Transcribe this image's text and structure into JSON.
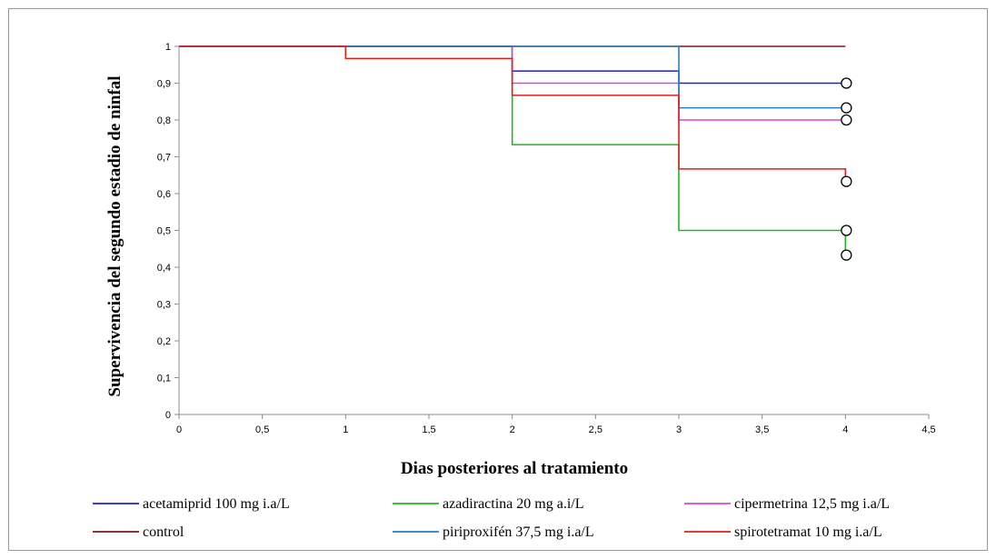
{
  "chart_data": {
    "type": "line",
    "step": true,
    "title": "",
    "xlabel": "Dias posteriores al tratamiento",
    "ylabel": "Supervivencia del segundo estadio de ninfal",
    "xlim": [
      0,
      4.5
    ],
    "ylim": [
      0,
      1
    ],
    "x_ticks": [
      "0",
      "0,5",
      "1",
      "1,5",
      "2",
      "2,5",
      "3",
      "3,5",
      "4",
      "4,5"
    ],
    "y_ticks": [
      "0",
      "0,1",
      "0,2",
      "0,3",
      "0,4",
      "0,5",
      "0,6",
      "0,7",
      "0,8",
      "0,9",
      "1"
    ],
    "grid": false,
    "legend_position": "bottom",
    "series": [
      {
        "name": "acetamiprid  100 mg i.a/L",
        "color": "#1f1fd6",
        "points": [
          [
            0,
            1
          ],
          [
            2,
            0.933
          ],
          [
            3,
            0.9
          ],
          [
            4,
            0.9
          ]
        ],
        "censored": [
          [
            4,
            0.9
          ]
        ]
      },
      {
        "name": "azadiractina  20 mg a.i/L",
        "color": "#22b422",
        "points": [
          [
            0,
            1
          ],
          [
            2,
            0.733
          ],
          [
            3,
            0.5
          ],
          [
            4,
            0.433
          ]
        ],
        "censored": [
          [
            4,
            0.5
          ],
          [
            4,
            0.433
          ]
        ]
      },
      {
        "name": "cipermetrina  12,5 mg i.a/L",
        "color": "#d24ad2",
        "points": [
          [
            0,
            1
          ],
          [
            2,
            0.9
          ],
          [
            3,
            0.8
          ],
          [
            4,
            0.8
          ]
        ],
        "censored": [
          [
            4,
            0.8
          ]
        ]
      },
      {
        "name": "control",
        "color": "#7b1a1a",
        "points": [
          [
            0,
            1
          ],
          [
            4,
            1
          ]
        ],
        "censored": []
      },
      {
        "name": "piriproxifén 37,5 mg i.a/L",
        "color": "#2a7fb8",
        "points": [
          [
            0,
            1
          ],
          [
            2,
            1
          ],
          [
            3,
            0.833
          ],
          [
            4,
            0.833
          ]
        ],
        "censored": [
          [
            4,
            0.833
          ]
        ]
      },
      {
        "name": "spirotetramat 10 mg i.a/L",
        "color": "#e01e1e",
        "points": [
          [
            0,
            1
          ],
          [
            1,
            0.967
          ],
          [
            2,
            0.867
          ],
          [
            3,
            0.667
          ],
          [
            4,
            0.633
          ]
        ],
        "censored": [
          [
            4,
            0.633
          ]
        ]
      }
    ]
  }
}
